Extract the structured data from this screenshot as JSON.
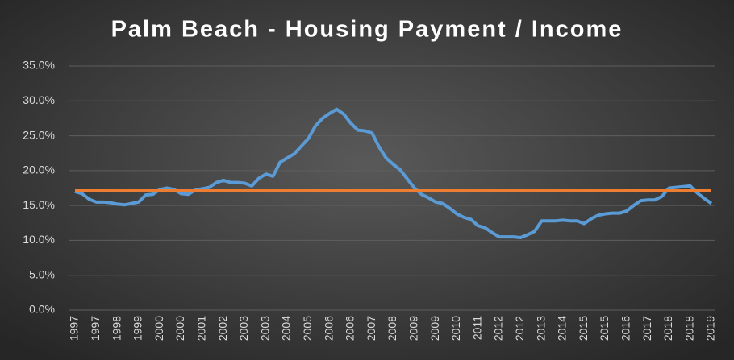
{
  "chart_data": {
    "type": "line",
    "title": "Palm Beach - Housing Payment / Income",
    "categories": [
      "1997",
      null,
      null,
      "1997",
      null,
      null,
      "1998",
      null,
      null,
      "1999",
      null,
      null,
      "2000",
      null,
      null,
      "2000",
      null,
      null,
      "2001",
      null,
      null,
      "2002",
      null,
      null,
      "2003",
      null,
      null,
      "2003",
      null,
      null,
      "2004",
      null,
      null,
      "2005",
      null,
      null,
      "2006",
      null,
      null,
      "2006",
      null,
      null,
      "2007",
      null,
      null,
      "2008",
      null,
      null,
      "2009",
      null,
      null,
      "2009",
      null,
      null,
      "2010",
      null,
      null,
      "2011",
      null,
      null,
      "2012",
      null,
      null,
      "2012",
      null,
      null,
      "2013",
      null,
      null,
      "2014",
      null,
      null,
      "2015",
      null,
      null,
      "2015",
      null,
      null,
      "2016",
      null,
      null,
      "2017",
      null,
      null,
      "2018",
      null,
      null,
      "2018",
      null,
      null,
      "2019"
    ],
    "series": [
      {
        "color": "#5b9bd5",
        "values": [
          17.0,
          16.7,
          15.9,
          15.5,
          15.5,
          15.4,
          15.2,
          15.1,
          15.3,
          15.5,
          16.5,
          16.6,
          17.3,
          17.5,
          17.3,
          16.7,
          16.6,
          17.2,
          17.4,
          17.6,
          18.3,
          18.6,
          18.3,
          18.3,
          18.2,
          17.8,
          18.9,
          19.5,
          19.2,
          21.2,
          21.8,
          22.4,
          23.5,
          24.6,
          26.4,
          27.5,
          28.2,
          28.8,
          28.1,
          26.8,
          25.8,
          25.7,
          25.4,
          23.4,
          21.8,
          20.9,
          20.1,
          18.8,
          17.5,
          16.6,
          16.1,
          15.5,
          15.3,
          14.6,
          13.8,
          13.3,
          13.0,
          12.1,
          11.8,
          11.1,
          10.5,
          10.5,
          10.5,
          10.4,
          10.8,
          11.3,
          12.8,
          12.8,
          12.8,
          12.9,
          12.8,
          12.8,
          12.4,
          13.1,
          13.6,
          13.8,
          13.9,
          13.9,
          14.2,
          15.0,
          15.7,
          15.8,
          15.8,
          16.3,
          17.5,
          17.6,
          17.7,
          17.8,
          16.8,
          16.0,
          15.3
        ]
      }
    ],
    "reference_line": {
      "value": 17.1,
      "color": "#ed7d31"
    },
    "ylim": [
      0,
      35
    ],
    "yticks": [
      {
        "value": 0,
        "label": "0.0%"
      },
      {
        "value": 5,
        "label": "5.0%"
      },
      {
        "value": 10,
        "label": "10.0%"
      },
      {
        "value": 15,
        "label": "15.0%"
      },
      {
        "value": 20,
        "label": "20.0%"
      },
      {
        "value": 25,
        "label": "25.0%"
      },
      {
        "value": 30,
        "label": "30.0%"
      },
      {
        "value": 35,
        "label": "35.0%"
      }
    ],
    "grid": true
  }
}
